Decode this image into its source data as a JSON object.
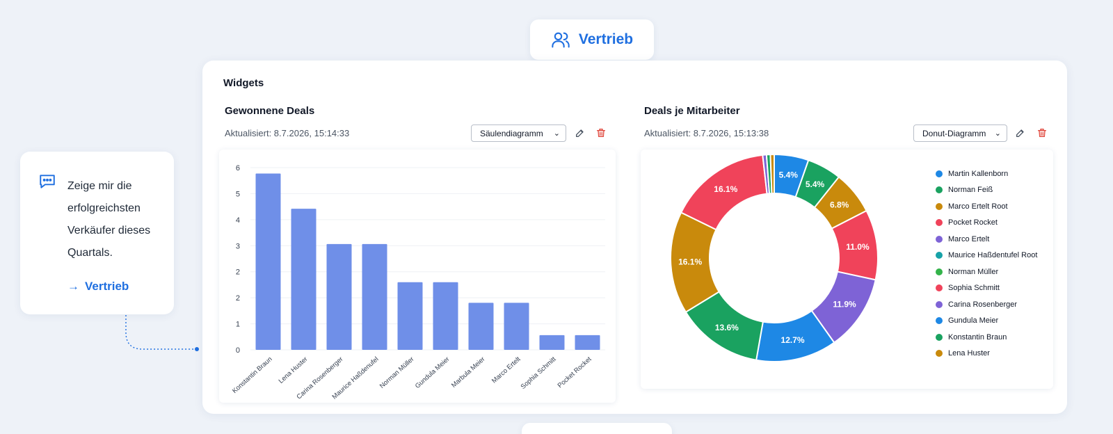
{
  "header": {
    "badge_label": "Vertrieb"
  },
  "prompt": {
    "lines": [
      "Zeige mir die",
      "erfolgreichsten",
      "Verkäufer dieses",
      "Quartals."
    ],
    "link_label": "Vertrieb"
  },
  "main": {
    "title": "Widgets",
    "widgets": [
      {
        "title": "Gewonnene Deals",
        "updated": "Aktualisiert: 8.7.2026, 15:14:33",
        "chart_type_label": "Säulendiagramm"
      },
      {
        "title": "Deals je Mitarbeiter",
        "updated": "Aktualisiert: 8.7.2026, 15:13:38",
        "chart_type_label": "Donut-Diagramm"
      }
    ]
  },
  "colors": {
    "accent": "#1f6fe0",
    "bar": "#6f8fe8",
    "delete": "#e0473c"
  },
  "chart_data": [
    {
      "type": "bar",
      "categories": [
        "Konstantin Braun",
        "Lena Huster",
        "Carina Rosenberger",
        "Maurice Haßdenufel",
        "Norman Müller",
        "Gundula Meier",
        "Marbula Meier",
        "Marco Ertelt",
        "Sophia Schmitt",
        "Pocket Rocket"
      ],
      "values": [
        6,
        4.8,
        3.6,
        3.6,
        2.3,
        2.3,
        1.6,
        1.6,
        0.5,
        0.5
      ],
      "yticks": [
        "0",
        "1",
        "2",
        "2",
        "3",
        "4",
        "5",
        "6"
      ],
      "ylim": [
        0,
        6.2
      ],
      "grid": true
    },
    {
      "type": "pie",
      "donut": true,
      "legend_position": "right",
      "slices": [
        {
          "name": "Martin Kallenborn",
          "value": 5.4,
          "label": "5.4%",
          "color": "#1e88e5"
        },
        {
          "name": "Norman Feiß",
          "value": 5.4,
          "label": "5.4%",
          "color": "#1aa260"
        },
        {
          "name": "Marco Ertelt Root",
          "value": 6.8,
          "label": "6.8%",
          "color": "#c98a0c"
        },
        {
          "name": "Pocket Rocket",
          "value": 11.0,
          "label": "11.0%",
          "color": "#f0435a"
        },
        {
          "name": "Marco Ertelt",
          "value": 11.9,
          "label": "11.9%",
          "color": "#7e63d6"
        },
        {
          "name": "Maurice Haßdentufel Root",
          "value": 12.7,
          "label": "12.7%",
          "color": "#1e88e5"
        },
        {
          "name": "Norman Müller",
          "value": 13.6,
          "label": "13.6%",
          "color": "#1aa260"
        },
        {
          "name": "Sophia Schmitt",
          "value": 16.1,
          "label": "16.1%",
          "color": "#c98a0c"
        },
        {
          "name": "Carina Rosenberger",
          "value": 16.1,
          "label": "16.1%",
          "color": "#f0435a"
        },
        {
          "name": "Gundula Meier",
          "value": 0.6,
          "label": "",
          "color": "#7e63d6"
        },
        {
          "name": "Konstantin Braun",
          "value": 0.6,
          "label": "",
          "color": "#1aa260"
        },
        {
          "name": "Lena Huster",
          "value": 0.6,
          "label": "",
          "color": "#c98a0c"
        }
      ],
      "legend_colors": [
        "#1e88e5",
        "#1aa260",
        "#c98a0c",
        "#f0435a",
        "#7e63d6",
        "#17a2a8",
        "#33b34a",
        "#f0435a",
        "#7e63d6",
        "#1e88e5",
        "#1aa260",
        "#c98a0c"
      ],
      "legend": [
        "Martin Kallenborn",
        "Norman Feiß",
        "Marco Ertelt Root",
        "Pocket Rocket",
        "Marco Ertelt",
        "Maurice Haßdentufel Root",
        "Norman Müller",
        "Sophia Schmitt",
        "Carina Rosenberger",
        "Gundula Meier",
        "Konstantin Braun",
        "Lena Huster"
      ]
    }
  ]
}
